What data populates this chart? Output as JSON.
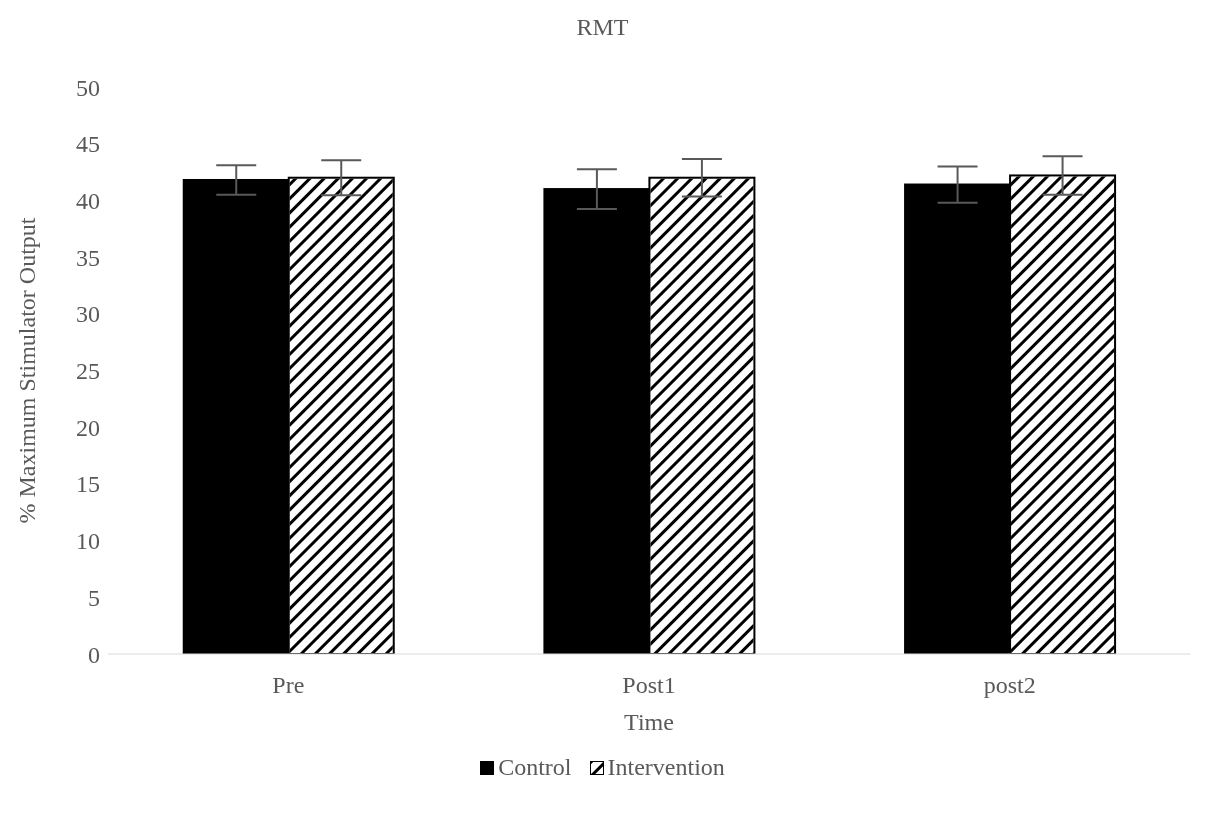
{
  "chart_data": {
    "type": "bar",
    "title": "RMT",
    "xlabel": "Time",
    "ylabel": "% Maximum Stimulator Output",
    "categories": [
      "Pre",
      "Post1",
      "post2"
    ],
    "series": [
      {
        "name": "Control",
        "color": "#000000",
        "values": [
          41.8,
          41.0,
          41.4
        ],
        "errors": [
          1.3,
          1.75,
          1.6
        ]
      },
      {
        "name": "Intervention",
        "color": "#ffffff",
        "values": [
          42.0,
          42.0,
          42.2
        ],
        "errors": [
          1.55,
          1.65,
          1.7
        ]
      }
    ],
    "ylim": [
      0,
      50
    ],
    "yticks": [
      0,
      5,
      10,
      15,
      20,
      25,
      30,
      35,
      40,
      45,
      50
    ],
    "grid": false,
    "legend": "bottom"
  }
}
